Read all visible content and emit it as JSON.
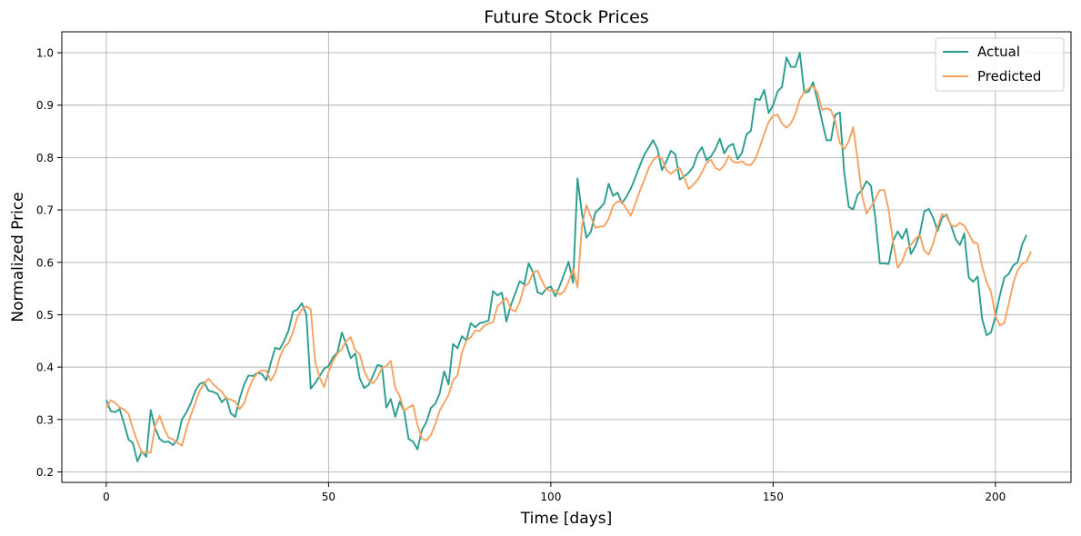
{
  "chart_data": {
    "type": "line",
    "title": "Future Stock Prices",
    "xlabel": "Time [days]",
    "ylabel": "Normalized Price",
    "xlim": [
      -10,
      217
    ],
    "ylim": [
      0.18,
      1.04
    ],
    "x_ticks": [
      0,
      50,
      100,
      150,
      200
    ],
    "x_tick_labels": [
      "0",
      "50",
      "100",
      "150",
      "200"
    ],
    "y_ticks": [
      0.2,
      0.3,
      0.4,
      0.5,
      0.6,
      0.7,
      0.8,
      0.9,
      1.0
    ],
    "y_tick_labels": [
      "0.2",
      "0.3",
      "0.4",
      "0.5",
      "0.6",
      "0.7",
      "0.8",
      "0.9",
      "1.0"
    ],
    "grid": true,
    "legend_position": "top-right",
    "series": [
      {
        "name": "Actual",
        "color": "#2a9d8f",
        "values": [
          0.337,
          0.316,
          0.314,
          0.32,
          0.292,
          0.262,
          0.255,
          0.22,
          0.239,
          0.229,
          0.318,
          0.283,
          0.263,
          0.257,
          0.258,
          0.251,
          0.262,
          0.3,
          0.313,
          0.331,
          0.354,
          0.368,
          0.371,
          0.355,
          0.353,
          0.349,
          0.333,
          0.342,
          0.312,
          0.305,
          0.34,
          0.367,
          0.384,
          0.383,
          0.389,
          0.387,
          0.375,
          0.408,
          0.437,
          0.434,
          0.45,
          0.47,
          0.506,
          0.51,
          0.522,
          0.5,
          0.359,
          0.37,
          0.383,
          0.397,
          0.402,
          0.419,
          0.428,
          0.466,
          0.443,
          0.417,
          0.426,
          0.379,
          0.36,
          0.366,
          0.384,
          0.404,
          0.402,
          0.323,
          0.339,
          0.305,
          0.334,
          0.316,
          0.263,
          0.258,
          0.243,
          0.28,
          0.295,
          0.322,
          0.33,
          0.35,
          0.392,
          0.367,
          0.444,
          0.436,
          0.459,
          0.451,
          0.484,
          0.476,
          0.484,
          0.486,
          0.489,
          0.545,
          0.537,
          0.542,
          0.487,
          0.518,
          0.541,
          0.564,
          0.558,
          0.598,
          0.581,
          0.543,
          0.539,
          0.55,
          0.554,
          0.535,
          0.555,
          0.578,
          0.601,
          0.561,
          0.76,
          0.693,
          0.647,
          0.658,
          0.695,
          0.703,
          0.713,
          0.75,
          0.727,
          0.733,
          0.713,
          0.725,
          0.741,
          0.762,
          0.784,
          0.805,
          0.819,
          0.833,
          0.816,
          0.776,
          0.793,
          0.813,
          0.806,
          0.758,
          0.764,
          0.771,
          0.782,
          0.807,
          0.82,
          0.795,
          0.802,
          0.816,
          0.836,
          0.808,
          0.822,
          0.826,
          0.797,
          0.809,
          0.844,
          0.851,
          0.912,
          0.91,
          0.929,
          0.885,
          0.9,
          0.926,
          0.935,
          0.991,
          0.973,
          0.973,
          1.0,
          0.924,
          0.926,
          0.944,
          0.908,
          0.87,
          0.833,
          0.833,
          0.882,
          0.886,
          0.771,
          0.706,
          0.701,
          0.729,
          0.738,
          0.755,
          0.746,
          0.684,
          0.598,
          0.598,
          0.597,
          0.641,
          0.659,
          0.645,
          0.664,
          0.616,
          0.631,
          0.655,
          0.697,
          0.702,
          0.685,
          0.66,
          0.685,
          0.691,
          0.671,
          0.645,
          0.633,
          0.655,
          0.571,
          0.563,
          0.573,
          0.493,
          0.461,
          0.466,
          0.497,
          0.537,
          0.571,
          0.578,
          0.594,
          0.6,
          0.634,
          0.652
        ]
      },
      {
        "name": "Predicted",
        "color": "#f4a261",
        "values": [
          0.322,
          0.337,
          0.332,
          0.323,
          0.319,
          0.311,
          0.282,
          0.258,
          0.236,
          0.237,
          0.237,
          0.289,
          0.307,
          0.283,
          0.266,
          0.262,
          0.256,
          0.25,
          0.281,
          0.308,
          0.331,
          0.355,
          0.368,
          0.378,
          0.368,
          0.36,
          0.353,
          0.34,
          0.338,
          0.334,
          0.32,
          0.331,
          0.357,
          0.377,
          0.389,
          0.394,
          0.393,
          0.374,
          0.388,
          0.418,
          0.438,
          0.446,
          0.467,
          0.496,
          0.51,
          0.516,
          0.51,
          0.41,
          0.38,
          0.362,
          0.391,
          0.412,
          0.426,
          0.435,
          0.45,
          0.457,
          0.432,
          0.425,
          0.393,
          0.376,
          0.369,
          0.38,
          0.398,
          0.402,
          0.412,
          0.36,
          0.345,
          0.317,
          0.323,
          0.328,
          0.29,
          0.264,
          0.26,
          0.27,
          0.291,
          0.317,
          0.332,
          0.347,
          0.375,
          0.384,
          0.428,
          0.451,
          0.457,
          0.47,
          0.469,
          0.479,
          0.483,
          0.486,
          0.516,
          0.524,
          0.532,
          0.511,
          0.506,
          0.524,
          0.554,
          0.56,
          0.58,
          0.584,
          0.565,
          0.548,
          0.546,
          0.547,
          0.538,
          0.545,
          0.563,
          0.588,
          0.552,
          0.67,
          0.709,
          0.687,
          0.666,
          0.668,
          0.669,
          0.683,
          0.708,
          0.716,
          0.716,
          0.702,
          0.689,
          0.712,
          0.736,
          0.757,
          0.78,
          0.795,
          0.803,
          0.797,
          0.776,
          0.769,
          0.776,
          0.78,
          0.761,
          0.74,
          0.748,
          0.757,
          0.772,
          0.79,
          0.796,
          0.78,
          0.776,
          0.785,
          0.803,
          0.792,
          0.79,
          0.793,
          0.786,
          0.786,
          0.797,
          0.82,
          0.845,
          0.868,
          0.88,
          0.882,
          0.865,
          0.857,
          0.865,
          0.883,
          0.911,
          0.925,
          0.932,
          0.936,
          0.924,
          0.891,
          0.894,
          0.891,
          0.868,
          0.828,
          0.816,
          0.831,
          0.858,
          0.796,
          0.728,
          0.693,
          0.706,
          0.721,
          0.738,
          0.738,
          0.699,
          0.638,
          0.59,
          0.601,
          0.625,
          0.633,
          0.645,
          0.652,
          0.622,
          0.615,
          0.636,
          0.668,
          0.692,
          0.688,
          0.671,
          0.668,
          0.675,
          0.67,
          0.655,
          0.638,
          0.636,
          0.593,
          0.563,
          0.544,
          0.497,
          0.48,
          0.484,
          0.521,
          0.56,
          0.585,
          0.597,
          0.601,
          0.621
        ]
      }
    ]
  }
}
